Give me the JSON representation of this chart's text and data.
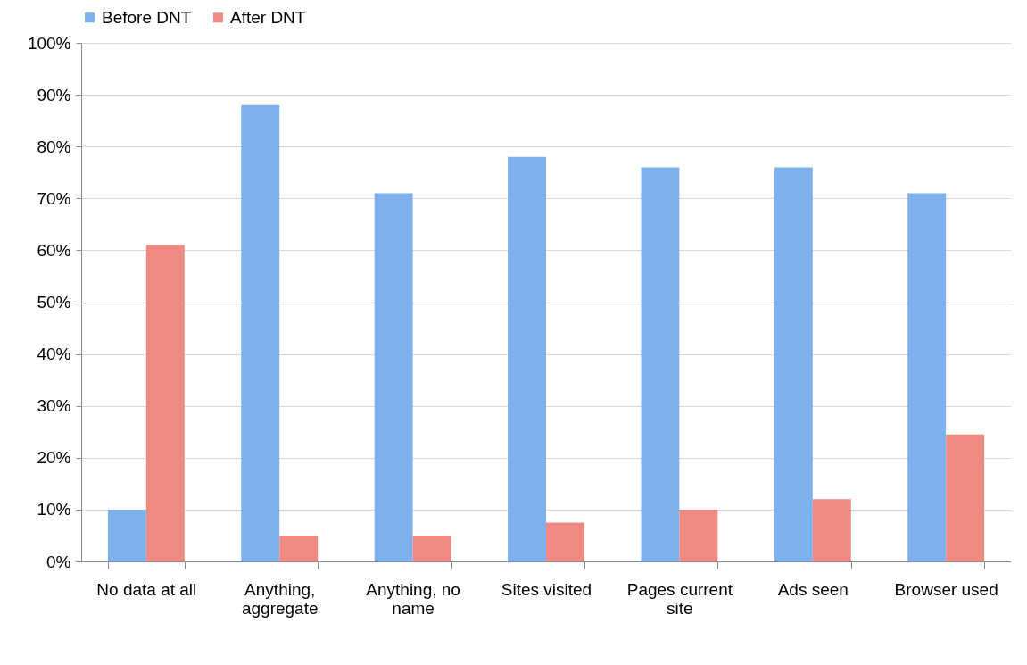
{
  "chart_data": {
    "type": "bar",
    "categories": [
      "No data at all",
      "Anything, aggregate",
      "Anything, no name",
      "Sites visited",
      "Pages current site",
      "Ads seen",
      "Browser used"
    ],
    "series": [
      {
        "name": "Before DNT",
        "color": "#7eb0ee",
        "values": [
          10,
          88,
          71,
          78,
          76,
          76,
          71
        ]
      },
      {
        "name": "After DNT",
        "color": "#ef8a82",
        "values": [
          61,
          5,
          5,
          7.5,
          10,
          12,
          24.5
        ]
      }
    ],
    "ylim": [
      0,
      100
    ],
    "yticks": [
      {
        "value": 0,
        "label": "0%"
      },
      {
        "value": 10,
        "label": "10%"
      },
      {
        "value": 20,
        "label": "20%"
      },
      {
        "value": 30,
        "label": "30%"
      },
      {
        "value": 40,
        "label": "40%"
      },
      {
        "value": 50,
        "label": "50%"
      },
      {
        "value": 60,
        "label": "60%"
      },
      {
        "value": 70,
        "label": "70%"
      },
      {
        "value": 80,
        "label": "80%"
      },
      {
        "value": 90,
        "label": "90%"
      },
      {
        "value": 100,
        "label": "100%"
      }
    ],
    "grid": "y",
    "legend": "top"
  }
}
